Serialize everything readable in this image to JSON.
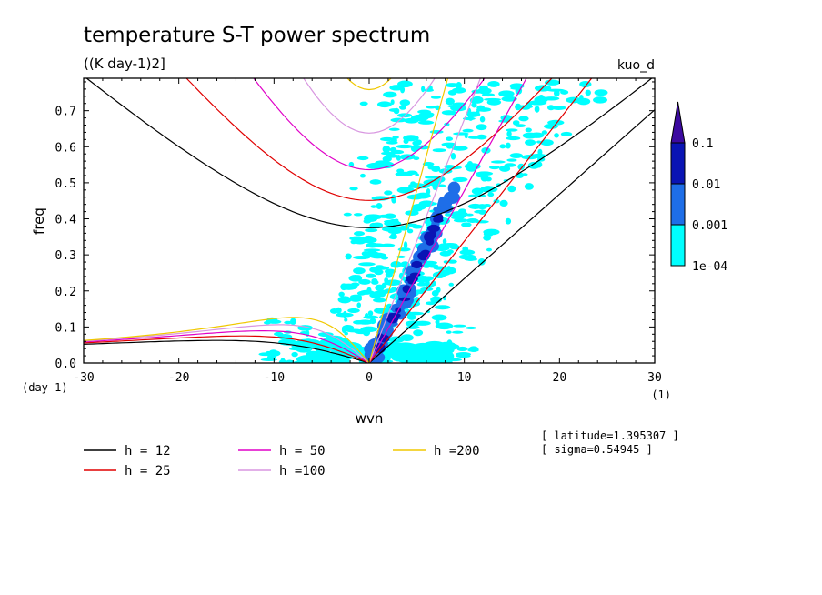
{
  "chart_data": {
    "type": "heatmap",
    "title": "temperature S-T power spectrum",
    "subtitle": "((K day-1)2]",
    "model_label": "kuo_d",
    "xlabel": "wvn",
    "ylabel": "freq",
    "x_unit": "(1)",
    "y_unit": "(day-1)",
    "xlim": [
      -30,
      30
    ],
    "ylim": [
      0,
      0.79
    ],
    "x_ticks": [
      -30,
      -20,
      -10,
      0,
      10,
      20,
      30
    ],
    "x_tick_labels": [
      "-30",
      "-20",
      "-10",
      "0",
      "10",
      "20",
      "30"
    ],
    "y_ticks": [
      0,
      0.1,
      0.2,
      0.3,
      0.4,
      0.5,
      0.6,
      0.7
    ],
    "y_tick_labels": [
      "0.0",
      "0.1",
      "0.2",
      "0.3",
      "0.4",
      "0.5",
      "0.6",
      "0.7"
    ],
    "colorbar": {
      "levels": [
        "1e-04",
        "0.001",
        "0.01",
        "0.1"
      ],
      "colors": [
        "#00ffff",
        "#1e6ee8",
        "#0a14b4",
        "#3c0aa0"
      ]
    },
    "dispersion_curves": [
      {
        "name": "h = 12",
        "color": "#000000"
      },
      {
        "name": "h = 25",
        "color": "#e00000"
      },
      {
        "name": "h = 50",
        "color": "#e000c8"
      },
      {
        "name": "h =100",
        "color": "#d896e0"
      },
      {
        "name": "h =200",
        "color": "#f0c800"
      }
    ],
    "spectral_ridge": {
      "description_values": [
        {
          "x": 0,
          "y": 0.0
        },
        {
          "x": 1,
          "y": 0.05
        },
        {
          "x": 2,
          "y": 0.1
        },
        {
          "x": 3,
          "y": 0.14
        },
        {
          "x": 4,
          "y": 0.2
        },
        {
          "x": 5,
          "y": 0.26
        },
        {
          "x": 6,
          "y": 0.32
        },
        {
          "x": 7,
          "y": 0.38
        },
        {
          "x": 8,
          "y": 0.44
        },
        {
          "x": 10,
          "y": 0.53
        },
        {
          "x": 12,
          "y": 0.62
        },
        {
          "x": 15,
          "y": 0.72
        }
      ],
      "peak_level": "0.1"
    },
    "annotations": [
      "[ latitude=1.395307 ]",
      "[ sigma=0.54945 ]"
    ]
  }
}
